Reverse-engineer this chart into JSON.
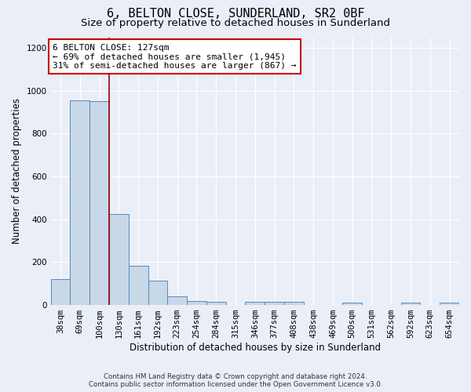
{
  "title": "6, BELTON CLOSE, SUNDERLAND, SR2 0BF",
  "subtitle": "Size of property relative to detached houses in Sunderland",
  "xlabel": "Distribution of detached houses by size in Sunderland",
  "ylabel": "Number of detached properties",
  "footnote1": "Contains HM Land Registry data © Crown copyright and database right 2024.",
  "footnote2": "Contains public sector information licensed under the Open Government Licence v3.0.",
  "categories": [
    "38sqm",
    "69sqm",
    "100sqm",
    "130sqm",
    "161sqm",
    "192sqm",
    "223sqm",
    "254sqm",
    "284sqm",
    "315sqm",
    "346sqm",
    "377sqm",
    "408sqm",
    "438sqm",
    "469sqm",
    "500sqm",
    "531sqm",
    "562sqm",
    "592sqm",
    "623sqm",
    "654sqm"
  ],
  "values": [
    120,
    955,
    950,
    425,
    185,
    115,
    40,
    18,
    15,
    0,
    15,
    15,
    15,
    0,
    0,
    10,
    0,
    0,
    10,
    0,
    10
  ],
  "bar_color": "#c8d8e8",
  "bar_edge_color": "#5588bb",
  "vline_x": 2.5,
  "vline_color": "#990000",
  "annotation_text": "6 BELTON CLOSE: 127sqm\n← 69% of detached houses are smaller (1,945)\n31% of semi-detached houses are larger (867) →",
  "annotation_box_color": "#ffffff",
  "annotation_box_edge": "#cc0000",
  "ylim": [
    0,
    1250
  ],
  "yticks": [
    0,
    200,
    400,
    600,
    800,
    1000,
    1200
  ],
  "bg_color": "#eaeff7",
  "plot_bg_color": "#eaeff7",
  "grid_color": "#ffffff",
  "title_fontsize": 11,
  "subtitle_fontsize": 9.5
}
